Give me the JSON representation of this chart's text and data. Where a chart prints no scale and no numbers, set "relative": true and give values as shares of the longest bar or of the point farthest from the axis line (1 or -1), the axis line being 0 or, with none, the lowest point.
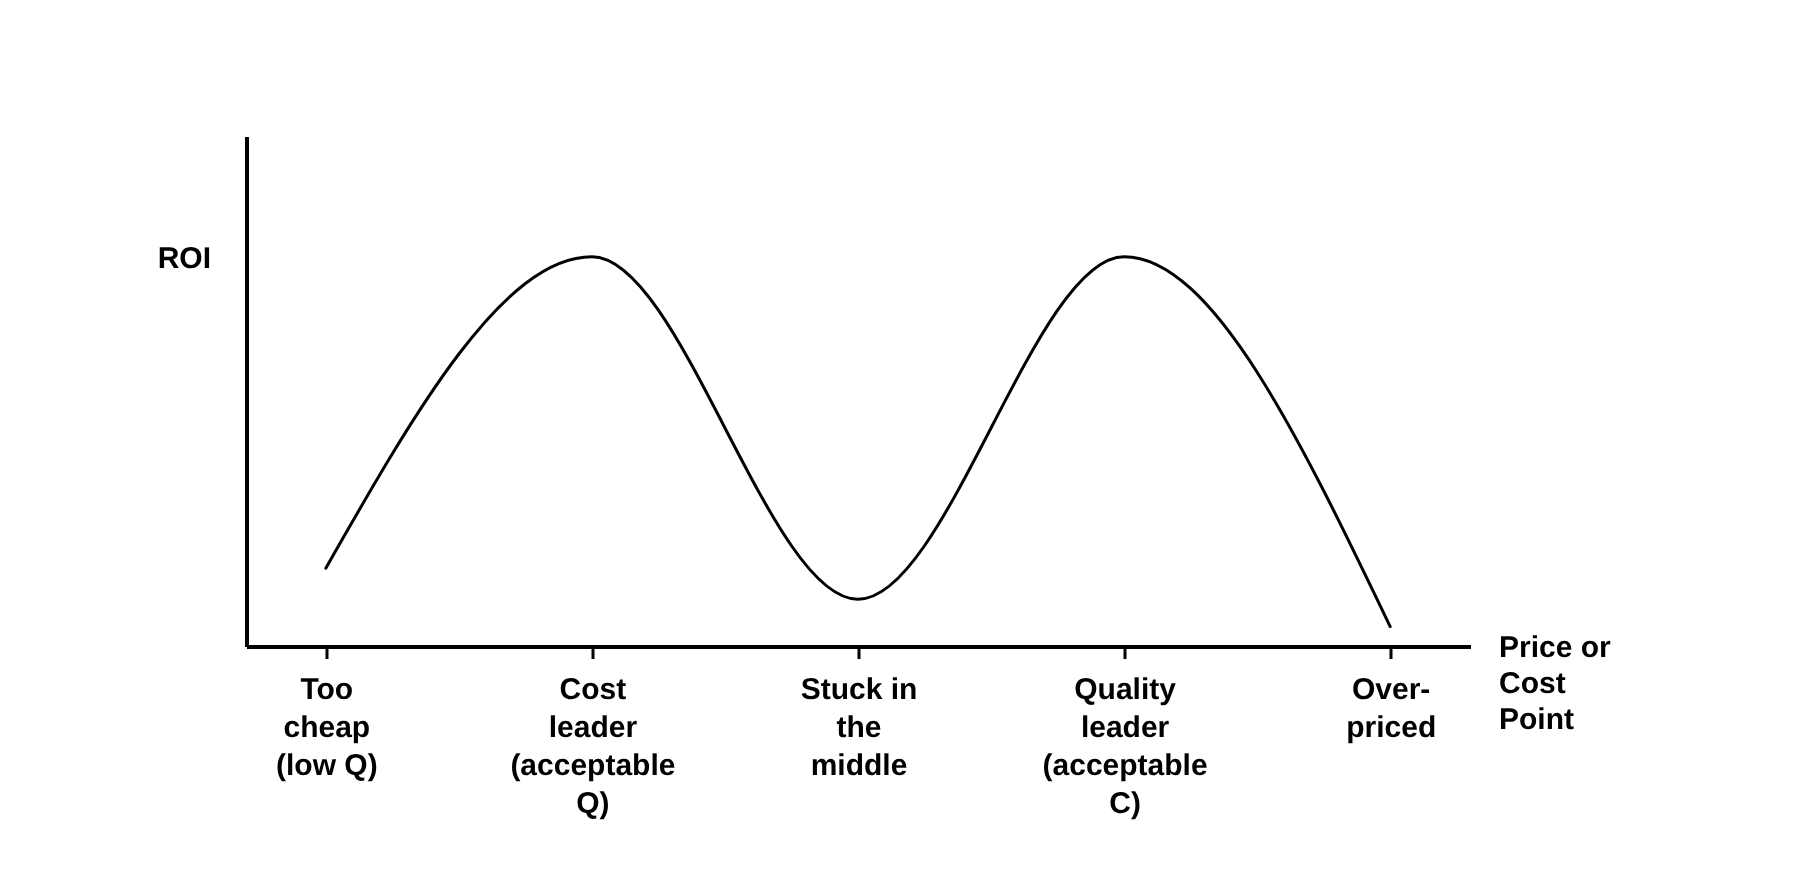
{
  "chart_data": {
    "type": "line",
    "relative": true,
    "xlabel": "Price or Cost Point",
    "ylabel": "ROI",
    "categories": [
      "Too cheap (low Q)",
      "Cost leader (acceptable Q)",
      "Stuck in the middle",
      "Quality leader (acceptable C)",
      "Over-priced"
    ],
    "series": [
      {
        "color": "#000000",
        "values": [
          0.2,
          1,
          0.12,
          1,
          0.05
        ]
      }
    ],
    "grid": false,
    "legend": false,
    "marker": "none",
    "line_style": "solid"
  }
}
